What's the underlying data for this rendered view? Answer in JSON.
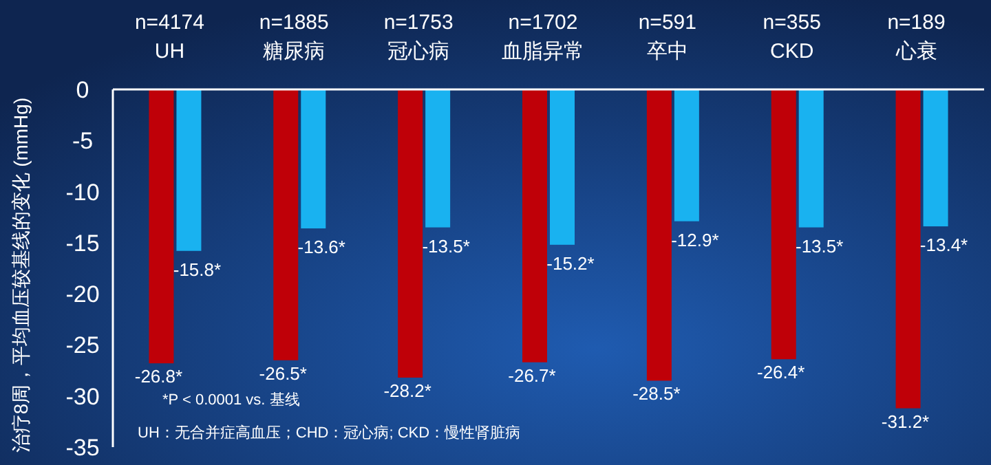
{
  "chart_data": {
    "type": "bar",
    "ylabel": "治疗8周，平均血压较基线的变化 (mmHg)",
    "categories": [
      "n=4174\nUH",
      "n=1885\n糖尿病",
      "n=1753\n冠心病",
      "n=1702\n血脂异常",
      "n=591\n卒中",
      "n=355\nCKD",
      "n=189\n心衰"
    ],
    "series": [
      {
        "color": "#bf0008",
        "values": [
          -26.8,
          -26.5,
          -28.2,
          -26.7,
          -28.5,
          -26.4,
          -31.2
        ],
        "value_labels": [
          "-26.8*",
          "-26.5*",
          "-28.2*",
          "-26.7*",
          "-28.5*",
          "-26.4*",
          "-31.2*"
        ]
      },
      {
        "color": "#19b2f0",
        "values": [
          -15.8,
          -13.6,
          -13.5,
          -15.2,
          -12.9,
          -13.5,
          -13.4
        ],
        "value_labels": [
          "-15.8*",
          "-13.6*",
          "-13.5*",
          "-15.2*",
          "-12.9*",
          "-13.5*",
          "-13.4*"
        ]
      }
    ],
    "ylim": [
      -35,
      0
    ],
    "yticks": [
      0,
      -5,
      -10,
      -15,
      -20,
      -25,
      -30,
      -35
    ],
    "annotations": [
      "*P < 0.0001 vs. 基线",
      "UH：无合并症高血压；CHD：冠心病; CKD：慢性肾脏病"
    ],
    "grid": false
  }
}
